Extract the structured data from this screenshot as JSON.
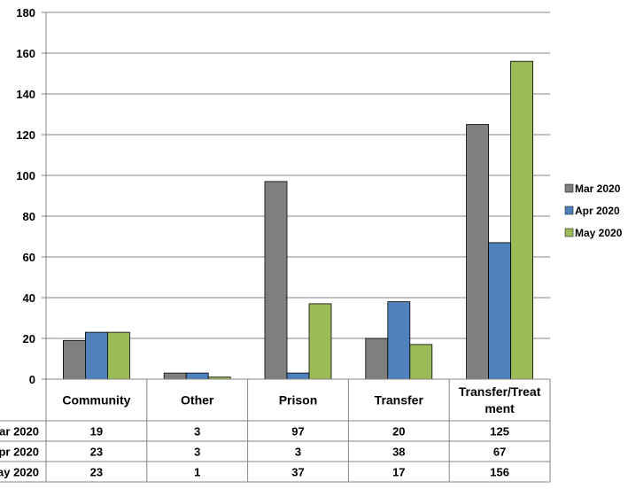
{
  "chart_data": {
    "type": "bar",
    "categories": [
      "Community",
      "Other",
      "Prison",
      "Transfer",
      "Transfer/Treatment"
    ],
    "category_label_lines": [
      [
        "Community"
      ],
      [
        "Other"
      ],
      [
        "Prison"
      ],
      [
        "Transfer"
      ],
      [
        "Transfer/Treat",
        "ment"
      ]
    ],
    "series": [
      {
        "name": "Mar 2020",
        "values": [
          19,
          3,
          97,
          20,
          125
        ],
        "color": "#7f7f7f"
      },
      {
        "name": "Apr 2020",
        "values": [
          23,
          3,
          3,
          38,
          67
        ],
        "color": "#4f81bd"
      },
      {
        "name": "May 2020",
        "values": [
          23,
          1,
          37,
          17,
          156
        ],
        "color": "#9bbb59"
      }
    ],
    "ylim": [
      0,
      180
    ],
    "yticks": [
      0,
      20,
      40,
      60,
      80,
      100,
      120,
      140,
      160,
      180
    ],
    "grid": true,
    "legend": "right",
    "data_table": true
  }
}
